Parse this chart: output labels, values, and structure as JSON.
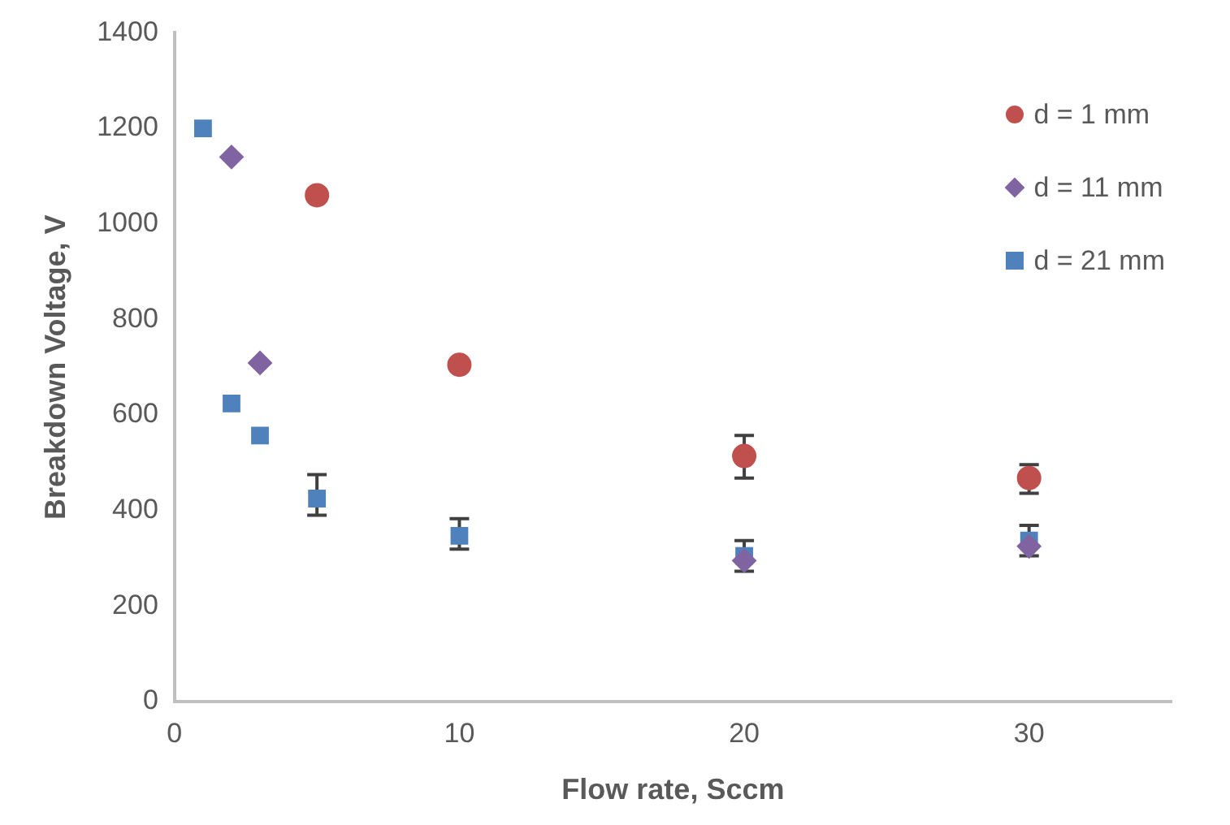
{
  "chart_data": {
    "type": "scatter",
    "xlabel": "Flow rate, Sccm",
    "ylabel": "Breakdown Voltage, V",
    "xlim": [
      0,
      35
    ],
    "xticks": [
      0,
      10,
      20,
      30
    ],
    "ylim": [
      0,
      1400
    ],
    "yticks": [
      0,
      200,
      400,
      600,
      800,
      1000,
      1200,
      1400
    ],
    "grid": false,
    "legend": "top right",
    "series": [
      {
        "name": "d = 1 mm",
        "color": "#c0504d",
        "marker": "circle",
        "x": [
          5,
          10,
          20,
          30
        ],
        "values": [
          1060,
          705,
          514,
          468
        ],
        "errors": [
          null,
          null,
          [
            468,
            557
          ],
          [
            436,
            496
          ]
        ]
      },
      {
        "name": "d = 11 mm",
        "color": "#8064a2",
        "marker": "diamond",
        "x": [
          2,
          3,
          20,
          30
        ],
        "values": [
          1140,
          709,
          295,
          325
        ]
      },
      {
        "name": "d = 21 mm",
        "color": "#4f81bd",
        "marker": "square",
        "x": [
          1,
          2,
          3,
          5,
          10,
          20,
          30
        ],
        "values": [
          1200,
          624,
          557,
          425,
          347,
          305,
          337
        ],
        "errors": [
          null,
          null,
          null,
          [
            390,
            475
          ],
          [
            319,
            383
          ],
          [
            273,
            337
          ],
          [
            305,
            369
          ]
        ]
      }
    ]
  }
}
